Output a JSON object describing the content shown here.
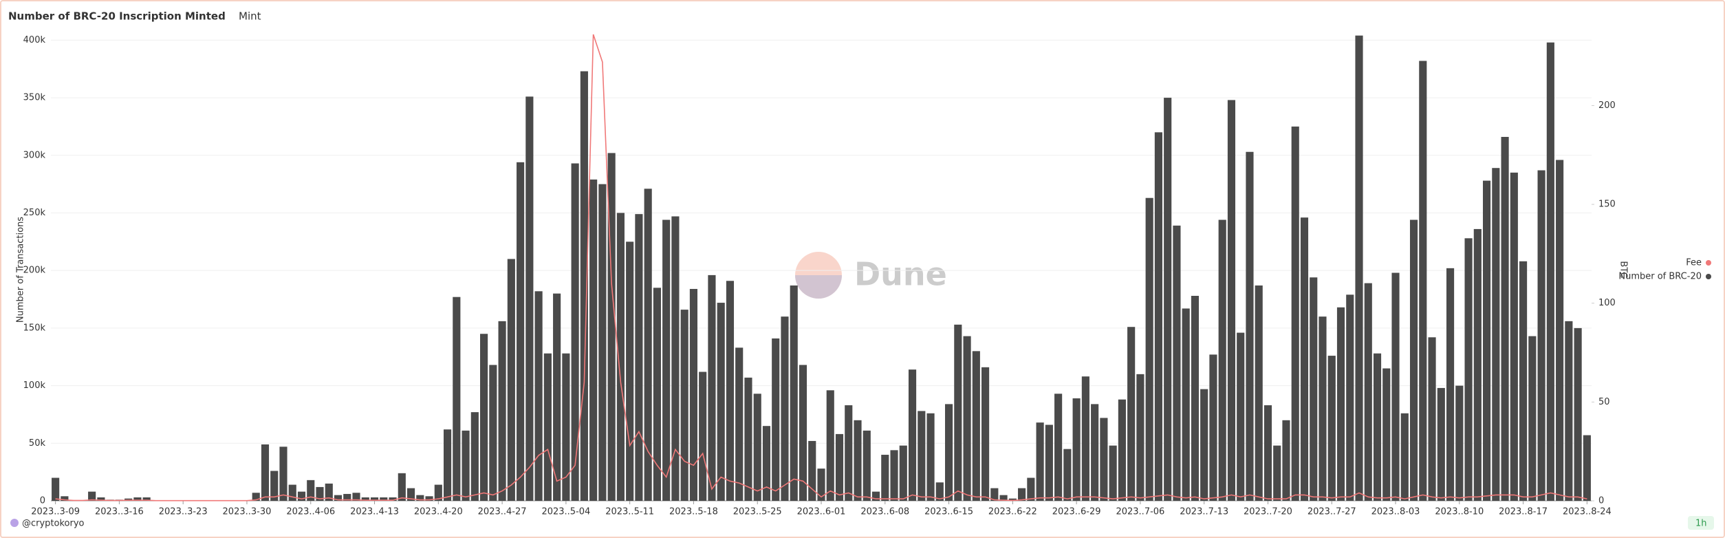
{
  "chart_data": {
    "type": "bar",
    "title": "Number of BRC-20 Inscription Minted",
    "tab": "Mint",
    "y_label": "Number of Transactions",
    "y2_label": "BTC",
    "categories": [
      "2023..3-09",
      null,
      null,
      null,
      null,
      null,
      null,
      "2023..3-16",
      null,
      null,
      null,
      null,
      null,
      null,
      "2023..3-23",
      null,
      null,
      null,
      null,
      null,
      null,
      "2023..3-30",
      null,
      null,
      null,
      null,
      null,
      null,
      "2023..4-06",
      null,
      null,
      null,
      null,
      null,
      null,
      "2023..4-13",
      null,
      null,
      null,
      null,
      null,
      null,
      "2023..4-20",
      null,
      null,
      null,
      null,
      null,
      null,
      "2023..4-27",
      null,
      null,
      null,
      null,
      null,
      null,
      "2023..5-04",
      null,
      null,
      null,
      null,
      null,
      null,
      "2023..5-11",
      null,
      null,
      null,
      null,
      null,
      null,
      "2023..5-18",
      null,
      null,
      null,
      null,
      null,
      null,
      "2023..5-25",
      null,
      null,
      null,
      null,
      null,
      null,
      "2023..6-01",
      null,
      null,
      null,
      null,
      null,
      null,
      "2023..6-08",
      null,
      null,
      null,
      null,
      null,
      null,
      "2023..6-15",
      null,
      null,
      null,
      null,
      null,
      null,
      "2023..6-22",
      null,
      null,
      null,
      null,
      null,
      null,
      "2023..6-29",
      null,
      null,
      null,
      null,
      null,
      null,
      "2023..7-06",
      null,
      null,
      null,
      null,
      null,
      null,
      "2023..7-13",
      null,
      null,
      null,
      null,
      null,
      null,
      "2023..7-20",
      null,
      null,
      null,
      null,
      null,
      null,
      "2023..7-27",
      null,
      null,
      null,
      null,
      null,
      null,
      "2023..8-03",
      null,
      null,
      null,
      null,
      null,
      null,
      "2023..8-10",
      null,
      null,
      null,
      null,
      null,
      null,
      "2023..8-17",
      null,
      null,
      null,
      null,
      null,
      null,
      "2023..8-24"
    ],
    "series": [
      {
        "name": "Number of BRC-20",
        "color": "#4a4a4a",
        "type": "bar",
        "values": [
          20000,
          4000,
          0,
          0,
          8000,
          3000,
          1000,
          1000,
          2000,
          3000,
          3000,
          0,
          0,
          0,
          0,
          0,
          0,
          0,
          0,
          0,
          0,
          0,
          7000,
          49000,
          26000,
          47000,
          14000,
          8000,
          18000,
          12000,
          15000,
          5000,
          6000,
          7000,
          3000,
          3000,
          3000,
          3000,
          24000,
          11000,
          5000,
          4000,
          14000,
          62000,
          177000,
          61000,
          77000,
          145000,
          118000,
          156000,
          210000,
          294000,
          351000,
          182000,
          128000,
          180000,
          128000,
          293000,
          373000,
          279000,
          275000,
          302000,
          250000,
          225000,
          249000,
          271000,
          185000,
          244000,
          247000,
          166000,
          184000,
          112000,
          196000,
          172000,
          191000,
          133000,
          107000,
          93000,
          65000,
          141000,
          160000,
          187000,
          118000,
          52000,
          28000,
          96000,
          58000,
          83000,
          70000,
          61000,
          8000,
          40000,
          44000,
          48000,
          114000,
          78000,
          76000,
          16000,
          84000,
          153000,
          143000,
          130000,
          116000,
          11000,
          5000,
          2000,
          11000,
          20000,
          68000,
          66000,
          93000,
          45000,
          89000,
          108000,
          84000,
          72000,
          48000,
          88000,
          151000,
          110000,
          263000,
          320000,
          350000,
          239000,
          167000,
          178000,
          97000,
          127000,
          244000,
          348000,
          146000,
          303000,
          187000,
          83000,
          48000,
          70000,
          325000,
          246000,
          194000,
          160000,
          126000,
          168000,
          179000,
          404000,
          189000,
          128000,
          115000,
          198000,
          76000,
          244000,
          382000,
          142000,
          98000,
          202000,
          100000,
          228000,
          236000,
          278000,
          289000,
          316000,
          285000,
          208000,
          143000,
          287000,
          398000,
          296000,
          156000,
          150000,
          57000
        ]
      },
      {
        "name": "Fee",
        "color": "#f07878",
        "type": "line",
        "axis": "y2",
        "values": [
          1,
          0.5,
          0.2,
          0.2,
          0.5,
          0.3,
          0.2,
          0.2,
          0.3,
          0.3,
          0.3,
          0.1,
          0.1,
          0.1,
          0.1,
          0.1,
          0.1,
          0.1,
          0.1,
          0.1,
          0.1,
          0.1,
          0.5,
          2,
          2,
          3,
          2,
          1,
          2,
          1,
          1.5,
          0.5,
          0.5,
          0.5,
          0.3,
          0.3,
          0.3,
          0.3,
          1.5,
          1,
          0.5,
          0.5,
          1,
          2,
          3,
          2,
          3,
          4,
          3,
          5,
          8,
          12,
          17,
          23,
          26,
          10,
          12,
          18,
          60,
          236,
          222,
          110,
          60,
          28,
          35,
          25,
          18,
          12,
          26,
          20,
          18,
          24,
          6,
          12,
          10,
          9,
          7,
          5,
          7,
          5,
          8,
          11,
          10,
          6,
          2,
          5,
          3,
          4,
          2,
          2,
          1,
          1,
          1,
          1,
          3,
          2,
          2,
          1,
          2,
          5,
          3,
          2,
          2,
          0.5,
          0.3,
          0.2,
          0.5,
          1,
          1.5,
          1.5,
          2,
          1,
          2,
          2,
          2,
          1.5,
          1,
          1.5,
          2,
          1.5,
          2,
          2.5,
          3,
          2,
          1.5,
          2,
          1,
          1.5,
          2,
          3,
          2,
          3,
          2,
          1,
          1,
          1,
          3,
          3,
          2,
          2,
          1.5,
          2,
          2,
          4,
          2,
          1.5,
          1.5,
          2,
          1,
          2,
          3,
          2,
          1.5,
          2,
          1.5,
          2,
          2,
          2.5,
          3,
          3,
          3,
          2,
          2,
          3,
          4,
          3,
          2,
          2,
          1
        ]
      }
    ],
    "ylim": [
      0,
      405000
    ],
    "yticks": [
      0,
      {
        "value": 50000,
        "label": "50k"
      },
      {
        "value": 100000,
        "label": "100k"
      },
      {
        "value": 150000,
        "label": "150k"
      },
      {
        "value": 200000,
        "label": "200k"
      },
      {
        "value": 250000,
        "label": "250k"
      },
      {
        "value": 300000,
        "label": "300k"
      },
      {
        "value": 350000,
        "label": "350k"
      },
      {
        "value": 400000,
        "label": "400k"
      }
    ],
    "y2lim": [
      0,
      236
    ],
    "y2ticks": [
      0,
      50,
      100,
      150,
      200
    ],
    "grid": true,
    "legend": "right"
  },
  "watermark": "Dune",
  "author": "@cryptokoryo",
  "refresh": "1h"
}
